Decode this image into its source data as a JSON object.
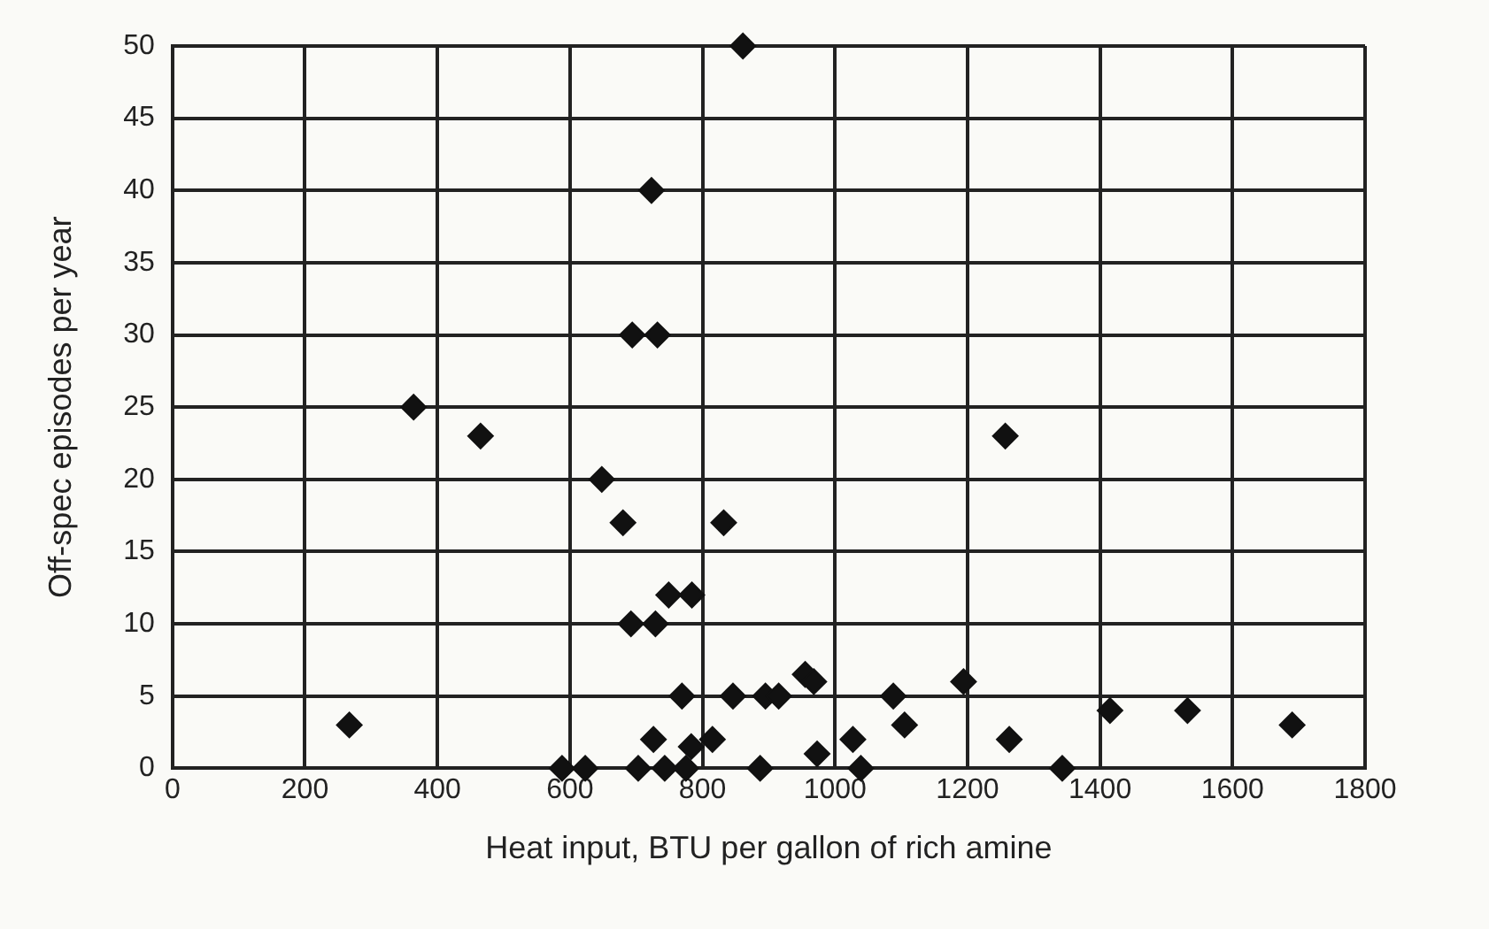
{
  "chart_data": {
    "type": "scatter",
    "xlabel": "Heat input, BTU per gallon of rich amine",
    "ylabel": "Off-spec episodes per year",
    "series": [
      {
        "color": "#111111",
        "x": [
          861,
          723,
          694,
          732,
          364,
          465,
          648,
          680,
          832,
          749,
          784,
          692,
          729,
          769,
          846,
          955,
          968,
          895,
          915,
          1088,
          1194,
          1105,
          1257,
          1263,
          726,
          783,
          815,
          973,
          1027,
          588,
          623,
          703,
          743,
          775,
          887,
          1039,
          267,
          1343,
          1415,
          1532,
          1690
        ],
        "values": [
          50,
          40,
          30,
          30,
          25,
          23,
          20,
          17,
          17,
          12,
          12,
          10,
          10,
          5,
          5,
          6.5,
          6,
          5,
          5,
          5,
          6,
          3,
          23,
          2,
          2,
          1.5,
          2,
          1,
          2,
          0,
          0,
          0,
          0,
          0,
          0,
          0,
          3,
          0,
          4,
          4,
          3
        ]
      }
    ],
    "xlim": [
      0,
      1800
    ],
    "xticks": [
      0,
      200,
      400,
      600,
      800,
      1000,
      1200,
      1400,
      1600,
      1800
    ],
    "ylim": [
      0,
      50
    ],
    "yticks": [
      0,
      5,
      10,
      15,
      20,
      25,
      30,
      35,
      40,
      45,
      50
    ],
    "grid": true,
    "legend": false,
    "marker": "diamond"
  }
}
